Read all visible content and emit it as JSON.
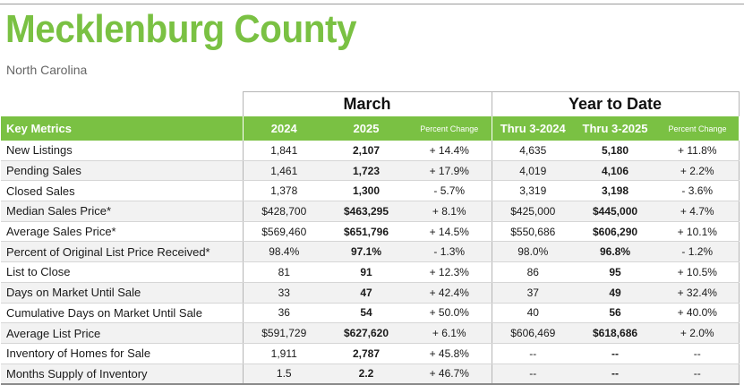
{
  "header": {
    "title": "Mecklenburg County",
    "subtitle": "North Carolina"
  },
  "colors": {
    "brand_green": "#7ac143",
    "row_alt": "#f2f2f2"
  },
  "table": {
    "group_march": "March",
    "group_ytd": "Year to Date",
    "col_metric": "Key Metrics",
    "col_2024": "2024",
    "col_2025": "2025",
    "col_pct_march": "Percent Change",
    "col_ytd_2024": "Thru 3-2024",
    "col_ytd_2025": "Thru 3-2025",
    "col_pct_ytd": "Percent Change",
    "rows": [
      {
        "metric": "New Listings",
        "m2024": "1,841",
        "m2025": "2,107",
        "mpct": "+ 14.4%",
        "y2024": "4,635",
        "y2025": "5,180",
        "ypct": "+ 11.8%"
      },
      {
        "metric": "Pending Sales",
        "m2024": "1,461",
        "m2025": "1,723",
        "mpct": "+ 17.9%",
        "y2024": "4,019",
        "y2025": "4,106",
        "ypct": "+ 2.2%"
      },
      {
        "metric": "Closed Sales",
        "m2024": "1,378",
        "m2025": "1,300",
        "mpct": "- 5.7%",
        "y2024": "3,319",
        "y2025": "3,198",
        "ypct": "- 3.6%"
      },
      {
        "metric": "Median Sales Price*",
        "m2024": "$428,700",
        "m2025": "$463,295",
        "mpct": "+ 8.1%",
        "y2024": "$425,000",
        "y2025": "$445,000",
        "ypct": "+ 4.7%"
      },
      {
        "metric": "Average Sales Price*",
        "m2024": "$569,460",
        "m2025": "$651,796",
        "mpct": "+ 14.5%",
        "y2024": "$550,686",
        "y2025": "$606,290",
        "ypct": "+ 10.1%"
      },
      {
        "metric": "Percent of Original List Price Received*",
        "m2024": "98.4%",
        "m2025": "97.1%",
        "mpct": "- 1.3%",
        "y2024": "98.0%",
        "y2025": "96.8%",
        "ypct": "- 1.2%"
      },
      {
        "metric": "List to Close",
        "m2024": "81",
        "m2025": "91",
        "mpct": "+ 12.3%",
        "y2024": "86",
        "y2025": "95",
        "ypct": "+ 10.5%"
      },
      {
        "metric": "Days on Market Until Sale",
        "m2024": "33",
        "m2025": "47",
        "mpct": "+ 42.4%",
        "y2024": "37",
        "y2025": "49",
        "ypct": "+ 32.4%"
      },
      {
        "metric": "Cumulative Days on Market Until Sale",
        "m2024": "36",
        "m2025": "54",
        "mpct": "+ 50.0%",
        "y2024": "40",
        "y2025": "56",
        "ypct": "+ 40.0%"
      },
      {
        "metric": "Average List Price",
        "m2024": "$591,729",
        "m2025": "$627,620",
        "mpct": "+ 6.1%",
        "y2024": "$606,469",
        "y2025": "$618,686",
        "ypct": "+ 2.0%"
      },
      {
        "metric": "Inventory of Homes for Sale",
        "m2024": "1,911",
        "m2025": "2,787",
        "mpct": "+ 45.8%",
        "y2024": "--",
        "y2025": "--",
        "ypct": "--"
      },
      {
        "metric": "Months Supply of Inventory",
        "m2024": "1.5",
        "m2025": "2.2",
        "mpct": "+ 46.7%",
        "y2024": "--",
        "y2025": "--",
        "ypct": "--"
      }
    ]
  }
}
